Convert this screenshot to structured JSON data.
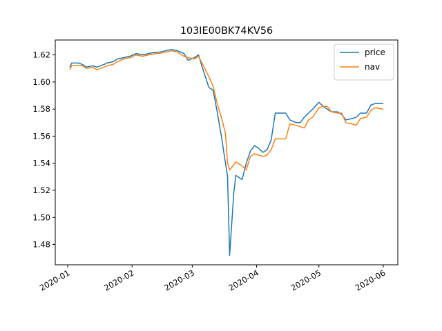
{
  "chart_data": {
    "type": "line",
    "title": "103IE00BK74KV56",
    "xlabel": "",
    "ylabel": "",
    "x_ticks": [
      "2020-01",
      "2020-02",
      "2020-03",
      "2020-04",
      "2020-05",
      "2020-06"
    ],
    "y_ticks": [
      "1.48",
      "1.50",
      "1.52",
      "1.54",
      "1.56",
      "1.58",
      "1.60",
      "1.62"
    ],
    "xlim": [
      "2019-12-26",
      "2020-06-08"
    ],
    "ylim": [
      1.465,
      1.631
    ],
    "grid": false,
    "legend_position": "top-right",
    "series": [
      {
        "name": "price",
        "color": "#1f77b4",
        "points": [
          [
            "2020-01-02",
            1.611
          ],
          [
            "2020-01-03",
            1.614
          ],
          [
            "2020-01-06",
            1.614
          ],
          [
            "2020-01-08",
            1.613
          ],
          [
            "2020-01-10",
            1.611
          ],
          [
            "2020-01-13",
            1.612
          ],
          [
            "2020-01-15",
            1.611
          ],
          [
            "2020-01-17",
            1.612
          ],
          [
            "2020-01-20",
            1.614
          ],
          [
            "2020-01-23",
            1.615
          ],
          [
            "2020-01-25",
            1.617
          ],
          [
            "2020-01-28",
            1.618
          ],
          [
            "2020-01-31",
            1.619
          ],
          [
            "2020-02-03",
            1.621
          ],
          [
            "2020-02-06",
            1.62
          ],
          [
            "2020-02-09",
            1.621
          ],
          [
            "2020-02-12",
            1.622
          ],
          [
            "2020-02-14",
            1.622
          ],
          [
            "2020-02-17",
            1.623
          ],
          [
            "2020-02-20",
            1.624
          ],
          [
            "2020-02-23",
            1.623
          ],
          [
            "2020-02-26",
            1.621
          ],
          [
            "2020-02-28",
            1.616
          ],
          [
            "2020-03-02",
            1.618
          ],
          [
            "2020-03-04",
            1.62
          ],
          [
            "2020-03-06",
            1.61
          ],
          [
            "2020-03-09",
            1.596
          ],
          [
            "2020-03-11",
            1.594
          ],
          [
            "2020-03-13",
            1.578
          ],
          [
            "2020-03-15",
            1.56
          ],
          [
            "2020-03-17",
            1.54
          ],
          [
            "2020-03-18",
            1.53
          ],
          [
            "2020-03-19",
            1.472
          ],
          [
            "2020-03-21",
            1.518
          ],
          [
            "2020-03-22",
            1.531
          ],
          [
            "2020-03-25",
            1.528
          ],
          [
            "2020-03-27",
            1.54
          ],
          [
            "2020-03-29",
            1.549
          ],
          [
            "2020-03-31",
            1.553
          ],
          [
            "2020-04-02",
            1.551
          ],
          [
            "2020-04-04",
            1.548
          ],
          [
            "2020-04-06",
            1.55
          ],
          [
            "2020-04-08",
            1.557
          ],
          [
            "2020-04-10",
            1.577
          ],
          [
            "2020-04-13",
            1.577
          ],
          [
            "2020-04-15",
            1.577
          ],
          [
            "2020-04-17",
            1.572
          ],
          [
            "2020-04-20",
            1.57
          ],
          [
            "2020-04-22",
            1.57
          ],
          [
            "2020-04-24",
            1.574
          ],
          [
            "2020-04-26",
            1.577
          ],
          [
            "2020-04-28",
            1.58
          ],
          [
            "2020-05-01",
            1.585
          ],
          [
            "2020-05-03",
            1.582
          ],
          [
            "2020-05-05",
            1.58
          ],
          [
            "2020-05-07",
            1.578
          ],
          [
            "2020-05-10",
            1.578
          ],
          [
            "2020-05-12",
            1.576
          ],
          [
            "2020-05-14",
            1.572
          ],
          [
            "2020-05-17",
            1.573
          ],
          [
            "2020-05-19",
            1.574
          ],
          [
            "2020-05-21",
            1.577
          ],
          [
            "2020-05-24",
            1.577
          ],
          [
            "2020-05-26",
            1.583
          ],
          [
            "2020-05-28",
            1.584
          ],
          [
            "2020-06-01",
            1.584
          ]
        ]
      },
      {
        "name": "nav",
        "color": "#ff7f0e",
        "points": [
          [
            "2020-01-02",
            1.609
          ],
          [
            "2020-01-03",
            1.612
          ],
          [
            "2020-01-06",
            1.612
          ],
          [
            "2020-01-08",
            1.612
          ],
          [
            "2020-01-10",
            1.61
          ],
          [
            "2020-01-13",
            1.611
          ],
          [
            "2020-01-15",
            1.609
          ],
          [
            "2020-01-17",
            1.61
          ],
          [
            "2020-01-20",
            1.612
          ],
          [
            "2020-01-23",
            1.613
          ],
          [
            "2020-01-25",
            1.615
          ],
          [
            "2020-01-28",
            1.617
          ],
          [
            "2020-01-31",
            1.618
          ],
          [
            "2020-02-03",
            1.62
          ],
          [
            "2020-02-06",
            1.619
          ],
          [
            "2020-02-09",
            1.62
          ],
          [
            "2020-02-12",
            1.621
          ],
          [
            "2020-02-14",
            1.621
          ],
          [
            "2020-02-17",
            1.622
          ],
          [
            "2020-02-20",
            1.623
          ],
          [
            "2020-02-23",
            1.622
          ],
          [
            "2020-02-26",
            1.619
          ],
          [
            "2020-02-28",
            1.618
          ],
          [
            "2020-03-02",
            1.617
          ],
          [
            "2020-03-04",
            1.619
          ],
          [
            "2020-03-06",
            1.613
          ],
          [
            "2020-03-09",
            1.604
          ],
          [
            "2020-03-11",
            1.597
          ],
          [
            "2020-03-13",
            1.584
          ],
          [
            "2020-03-15",
            1.574
          ],
          [
            "2020-03-17",
            1.562
          ],
          [
            "2020-03-18",
            1.54
          ],
          [
            "2020-03-19",
            1.535
          ],
          [
            "2020-03-21",
            1.539
          ],
          [
            "2020-03-22",
            1.541
          ],
          [
            "2020-03-25",
            1.538
          ],
          [
            "2020-03-27",
            1.535
          ],
          [
            "2020-03-29",
            1.545
          ],
          [
            "2020-03-31",
            1.547
          ],
          [
            "2020-04-02",
            1.546
          ],
          [
            "2020-04-04",
            1.545
          ],
          [
            "2020-04-06",
            1.546
          ],
          [
            "2020-04-08",
            1.55
          ],
          [
            "2020-04-10",
            1.558
          ],
          [
            "2020-04-13",
            1.558
          ],
          [
            "2020-04-15",
            1.558
          ],
          [
            "2020-04-17",
            1.569
          ],
          [
            "2020-04-20",
            1.568
          ],
          [
            "2020-04-22",
            1.567
          ],
          [
            "2020-04-24",
            1.566
          ],
          [
            "2020-04-26",
            1.572
          ],
          [
            "2020-04-28",
            1.574
          ],
          [
            "2020-05-01",
            1.581
          ],
          [
            "2020-05-03",
            1.582
          ],
          [
            "2020-05-05",
            1.582
          ],
          [
            "2020-05-07",
            1.578
          ],
          [
            "2020-05-10",
            1.577
          ],
          [
            "2020-05-12",
            1.577
          ],
          [
            "2020-05-14",
            1.57
          ],
          [
            "2020-05-17",
            1.569
          ],
          [
            "2020-05-19",
            1.568
          ],
          [
            "2020-05-21",
            1.573
          ],
          [
            "2020-05-24",
            1.574
          ],
          [
            "2020-05-26",
            1.579
          ],
          [
            "2020-05-28",
            1.581
          ],
          [
            "2020-06-01",
            1.58
          ]
        ]
      }
    ]
  }
}
